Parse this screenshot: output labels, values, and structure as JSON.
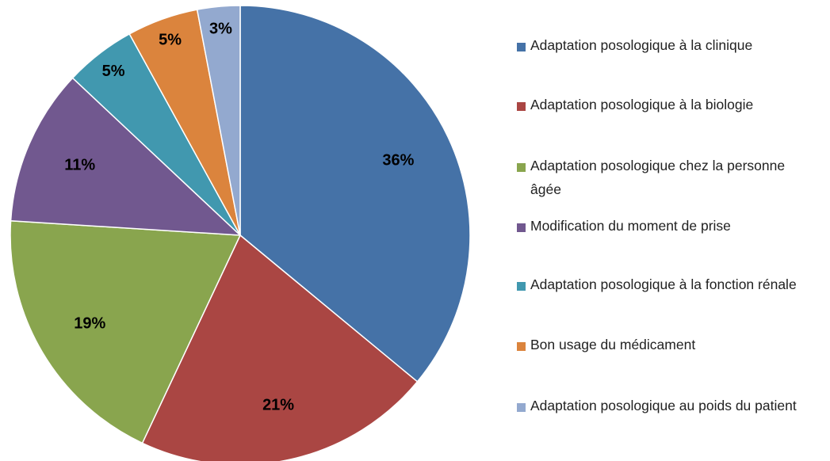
{
  "chart_data": {
    "type": "pie",
    "categories": [
      "Adaptation posologique à la clinique",
      "Adaptation posologique à la biologie",
      "Adaptation posologique chez la personne âgée",
      "Modification du moment de prise",
      "Adaptation posologique à la fonction rénale",
      "Bon usage du médicament",
      "Adaptation posologique au poids du patient"
    ],
    "values": [
      36,
      21,
      19,
      11,
      5,
      5,
      3
    ],
    "value_labels": [
      "36%",
      "21%",
      "19%",
      "11%",
      "5%",
      "5%",
      "3%"
    ],
    "colors": [
      "#4572a7",
      "#aa4643",
      "#89a54e",
      "#71588f",
      "#4198af",
      "#db843d",
      "#93a9cf"
    ],
    "legend": "right"
  }
}
